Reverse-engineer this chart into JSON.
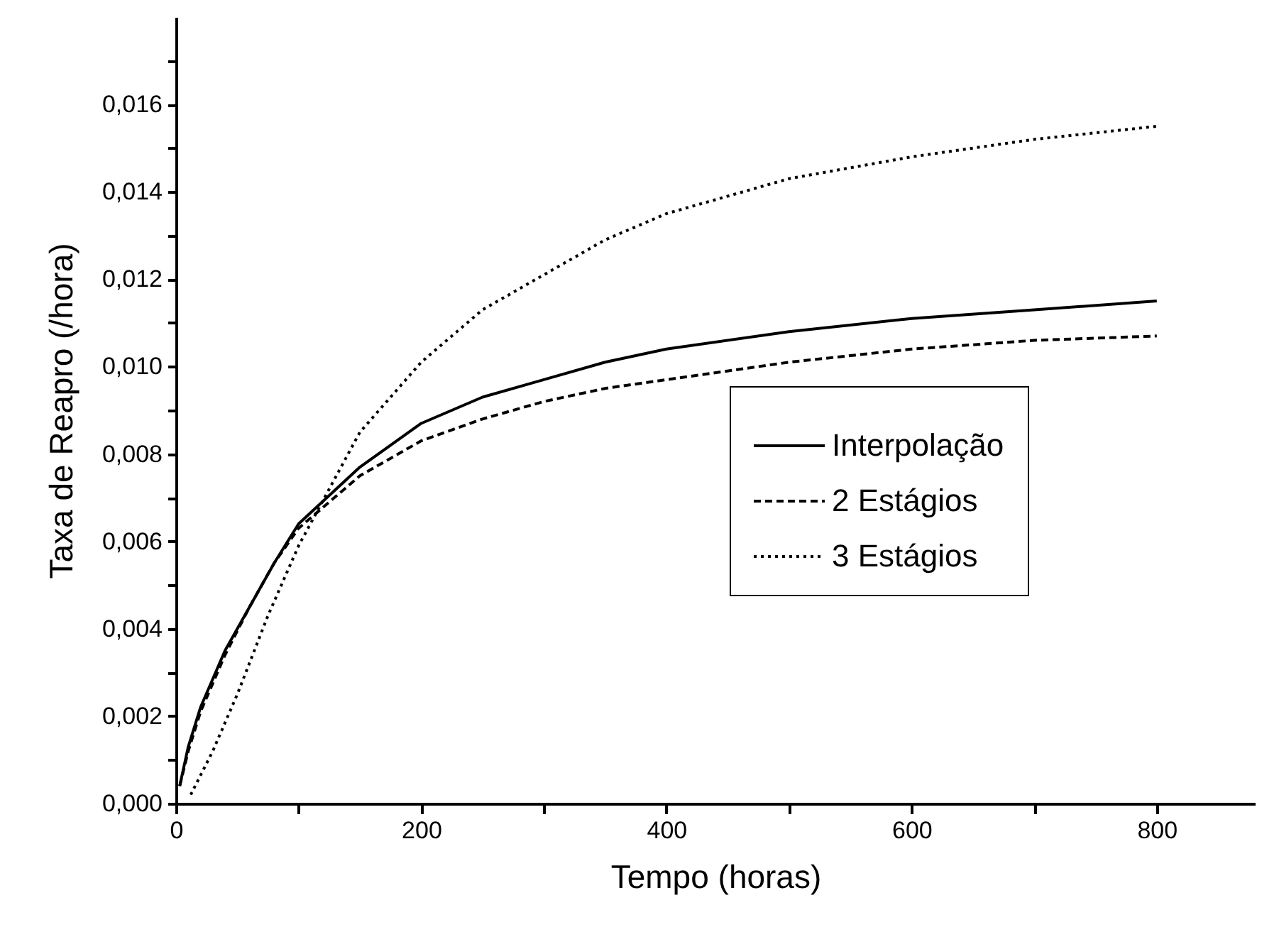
{
  "chart_data": {
    "type": "line",
    "xlabel": "Tempo (horas)",
    "ylabel": "Taxa de Reapro (/hora)",
    "series": [
      {
        "name": "Interpolação",
        "color": "#000000",
        "line_style": "solid",
        "x": [
          3,
          10,
          20,
          40,
          60,
          80,
          100,
          150,
          200,
          250,
          300,
          350,
          400,
          500,
          600,
          700,
          800
        ],
        "values": [
          0.0004,
          0.0013,
          0.0022,
          0.0035,
          0.0045,
          0.0055,
          0.0064,
          0.0077,
          0.0087,
          0.0093,
          0.0097,
          0.0101,
          0.0104,
          0.0108,
          0.0111,
          0.0113,
          0.0115
        ]
      },
      {
        "name": "2 Estágios",
        "color": "#000000",
        "line_style": "dashed",
        "x": [
          3,
          10,
          20,
          40,
          60,
          80,
          100,
          150,
          200,
          250,
          300,
          350,
          400,
          500,
          600,
          700,
          800
        ],
        "values": [
          0.0004,
          0.0012,
          0.0021,
          0.0034,
          0.0045,
          0.0055,
          0.0063,
          0.0075,
          0.0083,
          0.0088,
          0.0092,
          0.0095,
          0.0097,
          0.0101,
          0.0104,
          0.0106,
          0.0107
        ]
      },
      {
        "name": "3 Estágios",
        "color": "#000000",
        "line_style": "dotted",
        "x": [
          12,
          30,
          50,
          75,
          100,
          125,
          150,
          200,
          250,
          300,
          350,
          400,
          500,
          600,
          700,
          800
        ],
        "values": [
          0.0002,
          0.0012,
          0.0025,
          0.0043,
          0.0059,
          0.0072,
          0.0085,
          0.0101,
          0.0113,
          0.0121,
          0.0129,
          0.0135,
          0.0143,
          0.0148,
          0.0152,
          0.0155
        ]
      }
    ],
    "xlim": [
      0,
      880
    ],
    "xticks": [
      0,
      {
        "value": 100,
        "label": null
      },
      200,
      {
        "value": 300,
        "label": null
      },
      400,
      {
        "value": 500,
        "label": null
      },
      600,
      {
        "value": 700,
        "label": null
      },
      800
    ],
    "ylim": [
      0,
      0.018
    ],
    "yticks": [
      {
        "value": 0,
        "label": "0,000"
      },
      {
        "value": 0.001,
        "label": null
      },
      {
        "value": 0.002,
        "label": "0,002"
      },
      {
        "value": 0.003,
        "label": null
      },
      {
        "value": 0.004,
        "label": "0,004"
      },
      {
        "value": 0.005,
        "label": null
      },
      {
        "value": 0.006,
        "label": "0,006"
      },
      {
        "value": 0.007,
        "label": null
      },
      {
        "value": 0.008,
        "label": "0,008"
      },
      {
        "value": 0.009,
        "label": null
      },
      {
        "value": 0.01,
        "label": "0,010"
      },
      {
        "value": 0.011,
        "label": null
      },
      {
        "value": 0.012,
        "label": "0,012"
      },
      {
        "value": 0.013,
        "label": null
      },
      {
        "value": 0.014,
        "label": "0,014"
      },
      {
        "value": 0.015,
        "label": null
      },
      {
        "value": 0.016,
        "label": "0,016"
      },
      {
        "value": 0.017,
        "label": null
      }
    ],
    "legend": "right",
    "grid": false
  }
}
